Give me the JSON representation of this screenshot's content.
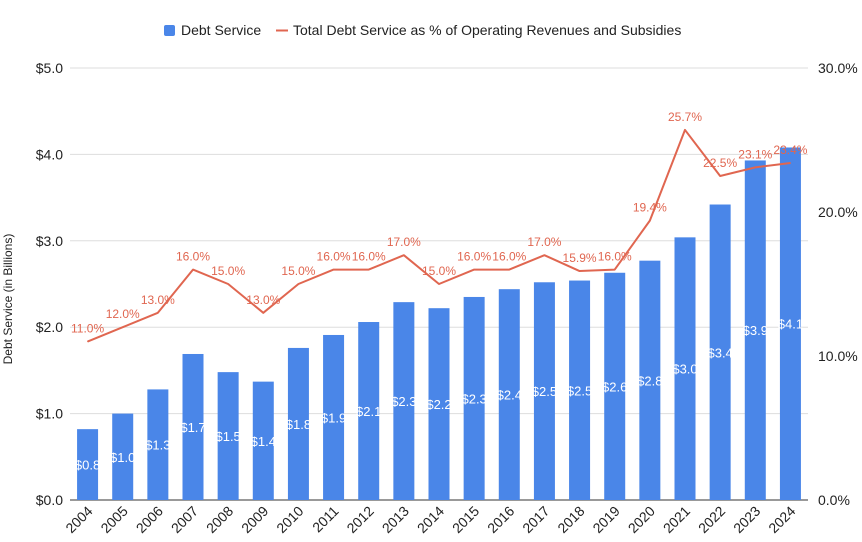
{
  "chart_data": {
    "type": "bar+line",
    "legend": [
      {
        "label": "Debt Service",
        "color": "#4a86e8",
        "kind": "bar"
      },
      {
        "label": "Total Debt Service as % of Operating Revenues and Subsidies",
        "color": "#e06650",
        "kind": "line"
      }
    ],
    "categories": [
      "2004",
      "2005",
      "2006",
      "2007",
      "2008",
      "2009",
      "2010",
      "2011",
      "2012",
      "2013",
      "2014",
      "2015",
      "2016",
      "2017",
      "2018",
      "2019",
      "2020",
      "2021",
      "2022",
      "2023",
      "2024"
    ],
    "series": [
      {
        "name": "Debt Service",
        "axis": "left",
        "values": [
          0.82,
          1.0,
          1.28,
          1.69,
          1.48,
          1.37,
          1.76,
          1.91,
          2.06,
          2.29,
          2.22,
          2.35,
          2.44,
          2.52,
          2.54,
          2.63,
          2.77,
          3.04,
          3.42,
          3.93,
          4.08
        ],
        "labels": [
          "$0.8",
          "$1.0",
          "$1.3",
          "$1.7",
          "$1.5",
          "$1.4",
          "$1.8",
          "$1.9",
          "$2.1",
          "$2.3",
          "$2.2",
          "$2.3",
          "$2.4",
          "$2.5",
          "$2.5",
          "$2.6",
          "$2.8",
          "$3.0",
          "$3.4",
          "$3.9",
          "$4.1"
        ]
      },
      {
        "name": "Total Debt Service as % of Operating Revenues and Subsidies",
        "axis": "right",
        "values": [
          11.0,
          12.0,
          13.0,
          16.0,
          15.0,
          13.0,
          15.0,
          16.0,
          16.0,
          17.0,
          15.0,
          16.0,
          16.0,
          17.0,
          15.9,
          16.0,
          19.4,
          25.7,
          22.5,
          23.1,
          23.4
        ],
        "labels": [
          "11.0%",
          "12.0%",
          "13.0%",
          "16.0%",
          "15.0%",
          "13.0%",
          "15.0%",
          "16.0%",
          "16.0%",
          "17.0%",
          "15.0%",
          "16.0%",
          "16.0%",
          "17.0%",
          "15.9%",
          "16.0%",
          "19.4%",
          "25.7%",
          "22.5%",
          "23.1%",
          "23.4%"
        ]
      }
    ],
    "y_left": {
      "label": "Debt Service (in Billions)",
      "min": 0,
      "max": 5,
      "ticks": [
        0,
        1,
        2,
        3,
        4,
        5
      ],
      "tick_labels": [
        "$0.0",
        "$1.0",
        "$2.0",
        "$3.0",
        "$4.0",
        "$5.0"
      ]
    },
    "y_right": {
      "min": 0,
      "max": 30,
      "ticks": [
        0,
        10,
        20,
        30
      ],
      "tick_labels": [
        "0.0%",
        "10.0%",
        "20.0%",
        "30.0%"
      ]
    },
    "grid": true,
    "legend_position": "top-center",
    "colors": {
      "bar": "#4a86e8",
      "line": "#e06650",
      "grid": "#dddddd",
      "text": "#222222"
    }
  }
}
